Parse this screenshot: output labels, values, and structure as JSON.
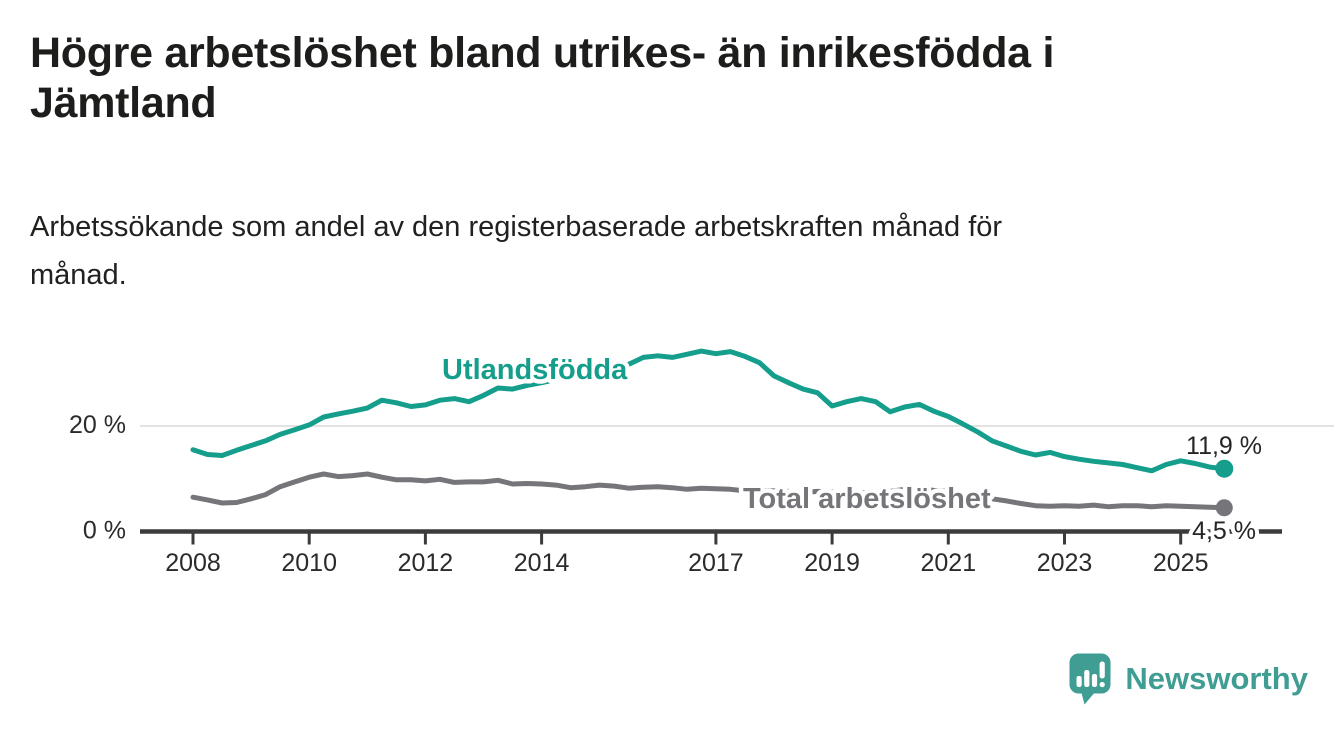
{
  "header": {
    "title": "Högre arbetslöshet bland utrikes- än inrikesfödda i\nJämtland",
    "subtitle": "Arbetssökande som andel av den registerbaserade arbetskraften månad för\nmånad."
  },
  "chart_data": {
    "type": "line",
    "unit": "%",
    "x_start": 2008,
    "x_step": 0.25,
    "x_end": 2025.75,
    "xticks": [
      "2008",
      "2010",
      "2012",
      "2014",
      "2017",
      "2019",
      "2021",
      "2023",
      "2025"
    ],
    "xtick_years": [
      2008,
      2010,
      2012,
      2014,
      2017,
      2019,
      2021,
      2023,
      2025
    ],
    "yticks": [
      {
        "value": 20,
        "label": "20 %"
      },
      {
        "value": 0,
        "label": "0 %"
      }
    ],
    "ylim": [
      0,
      36
    ],
    "grid": "horizontal line at 20 % only",
    "legend_position": "inline labels next to lines",
    "series": [
      {
        "name": "Total arbetslöshet",
        "color": "#75757a",
        "end_label": "4,5 %",
        "end_value": 4.5,
        "values": [
          6.5,
          6.0,
          5.4,
          5.5,
          6.2,
          7.0,
          8.5,
          9.4,
          10.3,
          10.9,
          10.4,
          10.6,
          10.9,
          10.3,
          9.8,
          9.8,
          9.6,
          9.9,
          9.3,
          9.4,
          9.4,
          9.7,
          9.0,
          9.1,
          9.0,
          8.8,
          8.3,
          8.5,
          8.8,
          8.6,
          8.2,
          8.4,
          8.5,
          8.3,
          8.0,
          8.2,
          8.1,
          8.0,
          7.7,
          7.8,
          7.7,
          7.6,
          7.4,
          7.6,
          7.5,
          7.4,
          7.3,
          7.5,
          7.6,
          8.0,
          8.1,
          7.8,
          7.6,
          7.2,
          6.7,
          6.2,
          5.8,
          5.3,
          4.9,
          4.8,
          4.9,
          4.8,
          5.0,
          4.7,
          4.9,
          4.9,
          4.7,
          4.9,
          4.8,
          4.7,
          4.6,
          4.5
        ]
      },
      {
        "name": "Utlandsfödda",
        "color": "#149e8b",
        "end_label": "11,9 %",
        "end_value": 11.9,
        "values": [
          15.5,
          14.6,
          14.4,
          15.4,
          16.3,
          17.2,
          18.4,
          19.3,
          20.2,
          21.7,
          22.3,
          22.8,
          23.4,
          24.9,
          24.4,
          23.7,
          24.0,
          24.9,
          25.2,
          24.6,
          25.8,
          27.2,
          27.0,
          27.7,
          28.2,
          28.8,
          29.3,
          29.8,
          30.4,
          31.0,
          31.7,
          33.0,
          33.3,
          33.0,
          33.6,
          34.2,
          33.7,
          34.1,
          33.2,
          32.0,
          29.5,
          28.2,
          27.0,
          26.3,
          23.8,
          24.6,
          25.2,
          24.6,
          22.7,
          23.6,
          24.1,
          22.8,
          21.8,
          20.4,
          18.9,
          17.2,
          16.2,
          15.2,
          14.5,
          15.0,
          14.2,
          13.7,
          13.3,
          13.0,
          12.7,
          12.1,
          11.5,
          12.7,
          13.4,
          12.9,
          12.2,
          11.9
        ]
      }
    ]
  },
  "footer": {
    "logo_text": "Newsworthy",
    "logo_color": "#3f9d94"
  }
}
